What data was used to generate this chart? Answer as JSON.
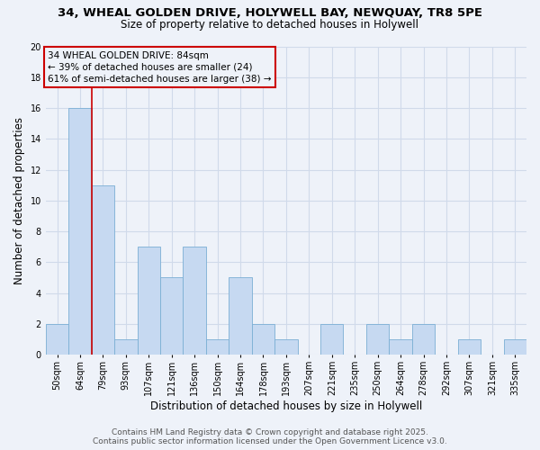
{
  "title_line1": "34, WHEAL GOLDEN DRIVE, HOLYWELL BAY, NEWQUAY, TR8 5PE",
  "title_line2": "Size of property relative to detached houses in Holywell",
  "xlabel": "Distribution of detached houses by size in Holywell",
  "ylabel": "Number of detached properties",
  "categories": [
    "50sqm",
    "64sqm",
    "79sqm",
    "93sqm",
    "107sqm",
    "121sqm",
    "136sqm",
    "150sqm",
    "164sqm",
    "178sqm",
    "193sqm",
    "207sqm",
    "221sqm",
    "235sqm",
    "250sqm",
    "264sqm",
    "278sqm",
    "292sqm",
    "307sqm",
    "321sqm",
    "335sqm"
  ],
  "values": [
    2,
    16,
    11,
    1,
    7,
    5,
    7,
    1,
    5,
    2,
    1,
    0,
    2,
    0,
    2,
    1,
    2,
    0,
    1,
    0,
    1
  ],
  "bar_color": "#c6d9f1",
  "bar_edge_color": "#7bafd4",
  "red_line_color": "#cc0000",
  "red_box_color": "#cc0000",
  "annotation_line1": "34 WHEAL GOLDEN DRIVE: 84sqm",
  "annotation_line2": "← 39% of detached houses are smaller (24)",
  "annotation_line3": "61% of semi-detached houses are larger (38) →",
  "ylim": [
    0,
    20
  ],
  "yticks": [
    0,
    2,
    4,
    6,
    8,
    10,
    12,
    14,
    16,
    18,
    20
  ],
  "footer_line1": "Contains HM Land Registry data © Crown copyright and database right 2025.",
  "footer_line2": "Contains public sector information licensed under the Open Government Licence v3.0.",
  "background_color": "#eef2f9",
  "grid_color": "#d0daea",
  "title_fontsize": 9.5,
  "subtitle_fontsize": 8.5,
  "axis_label_fontsize": 8.5,
  "tick_fontsize": 7.0,
  "annotation_fontsize": 7.5,
  "footer_fontsize": 6.5
}
